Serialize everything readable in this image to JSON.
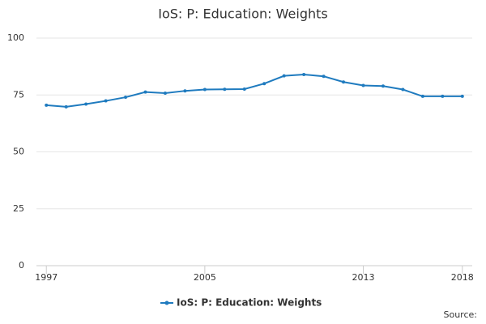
{
  "chart_data": {
    "type": "line",
    "title": "IoS: P: Education: Weights",
    "x": [
      1997,
      1998,
      1999,
      2000,
      2001,
      2002,
      2003,
      2004,
      2005,
      2006,
      2007,
      2008,
      2009,
      2010,
      2011,
      2012,
      2013,
      2014,
      2015,
      2016,
      2017,
      2018
    ],
    "series": [
      {
        "name": "IoS: P: Education: Weights",
        "color": "#1f7bbf",
        "values": [
          70.5,
          69.8,
          71,
          72.4,
          74,
          76.3,
          75.8,
          76.8,
          77.4,
          77.5,
          77.6,
          80,
          83.4,
          84,
          83.2,
          80.7,
          79.2,
          78.9,
          77.4,
          74.4,
          74.4,
          74.4
        ]
      }
    ],
    "xlim": [
      1996.5,
      2018.5
    ],
    "xticks": [
      1997,
      2005,
      2013,
      2018
    ],
    "ylim": [
      0,
      100
    ],
    "yticks": [
      0,
      25,
      50,
      75,
      100
    ],
    "grid": true,
    "source": "Source:"
  }
}
